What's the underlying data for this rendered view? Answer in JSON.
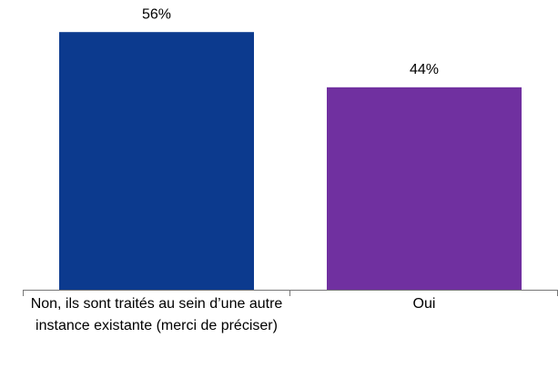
{
  "chart_data": {
    "type": "bar",
    "categories": [
      "Non, ils sont traités au sein d’une autre instance existante (merci de préciser)",
      "Oui"
    ],
    "values": [
      56,
      44
    ],
    "value_labels": [
      "56%",
      "44%"
    ],
    "colors": [
      "#0c3a8e",
      "#7030a0"
    ]
  }
}
